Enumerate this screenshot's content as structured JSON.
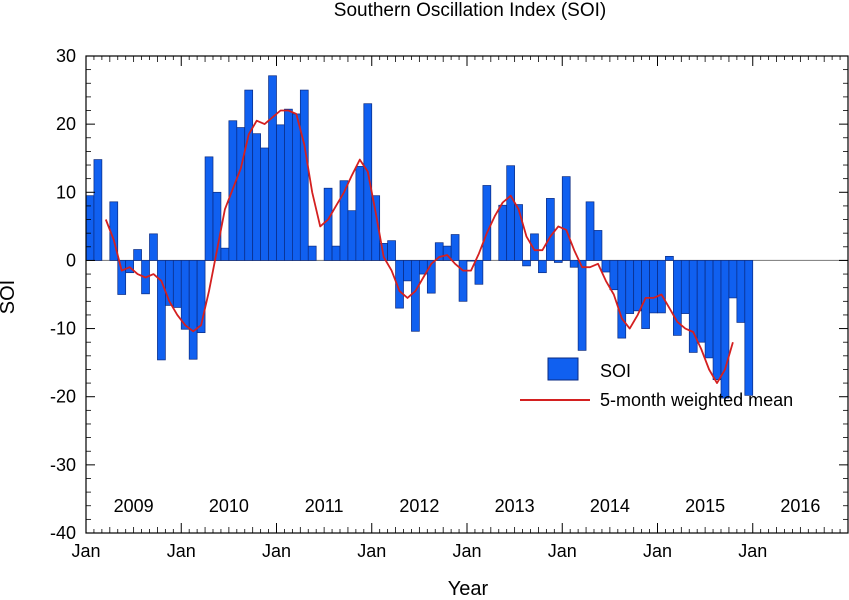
{
  "chart_data": {
    "type": "bar",
    "title": "Southern Oscillation Index (SOI)",
    "xlabel": "Year",
    "ylabel": "SOI",
    "ylim": [
      -40,
      30
    ],
    "yticks": [
      30,
      20,
      10,
      0,
      -10,
      -20,
      -30,
      -40
    ],
    "xlim": [
      2009.0,
      2017.0
    ],
    "x_month_label": "Jan",
    "year_labels": [
      "2009",
      "2010",
      "2011",
      "2012",
      "2013",
      "2014",
      "2015",
      "2016"
    ],
    "grid": false,
    "legend_position": "bottom-right",
    "series": [
      {
        "name": "SOI",
        "kind": "bar",
        "color": "#1060f0",
        "start": "2009-01",
        "values": [
          9.5,
          14.8,
          0.0,
          8.6,
          -5.0,
          -1.8,
          1.6,
          -4.9,
          3.9,
          -14.6,
          -6.6,
          -6.9,
          -10.1,
          -14.5,
          -10.6,
          15.2,
          10.0,
          1.8,
          20.5,
          19.5,
          25.0,
          18.6,
          16.5,
          27.1,
          19.9,
          22.2,
          21.5,
          25.0,
          2.1,
          0.0,
          10.6,
          2.1,
          11.7,
          7.3,
          13.8,
          23.0,
          9.5,
          2.5,
          2.9,
          -7.0,
          -3.0,
          -10.4,
          -2.0,
          -4.8,
          2.6,
          2.1,
          3.8,
          -6.0,
          -0.1,
          -3.5,
          11.0,
          0.0,
          8.1,
          13.9,
          8.2,
          -0.8,
          3.9,
          -1.8,
          9.1,
          -0.3,
          12.3,
          -1.0,
          -13.2,
          8.6,
          4.4,
          -1.7,
          -4.3,
          -11.4,
          -7.8,
          -7.4,
          -10.0,
          -7.7,
          -7.7,
          0.6,
          -11.0,
          -7.8,
          -13.5,
          -12.0,
          -14.3,
          -17.5,
          -20.2,
          -5.5,
          -9.1,
          -19.8
        ]
      },
      {
        "name": "5-month weighted mean",
        "kind": "line",
        "color": "#d42020",
        "start": "2009-03",
        "values": [
          6.0,
          3.0,
          -1.5,
          -1.0,
          -2.0,
          -2.5,
          -2.0,
          -3.0,
          -6.0,
          -8.0,
          -9.5,
          -10.4,
          -9.5,
          -4.5,
          1.5,
          7.5,
          10.5,
          13.5,
          18.5,
          20.5,
          20.0,
          21.0,
          22.0,
          22.0,
          21.5,
          17.0,
          10.0,
          5.0,
          6.0,
          8.0,
          10.0,
          12.5,
          14.8,
          13.0,
          7.0,
          0.5,
          -1.5,
          -4.5,
          -5.5,
          -4.5,
          -2.5,
          -0.5,
          0.5,
          0.8,
          -0.5,
          -1.5,
          -1.5,
          1.0,
          4.0,
          6.5,
          8.5,
          9.5,
          7.5,
          3.5,
          1.5,
          1.5,
          3.5,
          5.0,
          4.5,
          1.5,
          -1.0,
          -1.0,
          -0.5,
          -3.0,
          -5.0,
          -8.5,
          -10.0,
          -8.0,
          -5.5,
          -5.5,
          -5.0,
          -7.0,
          -9.0,
          -10.0,
          -10.5,
          -13.0,
          -16.0,
          -18.0,
          -16.0,
          -12.0
        ]
      }
    ]
  }
}
